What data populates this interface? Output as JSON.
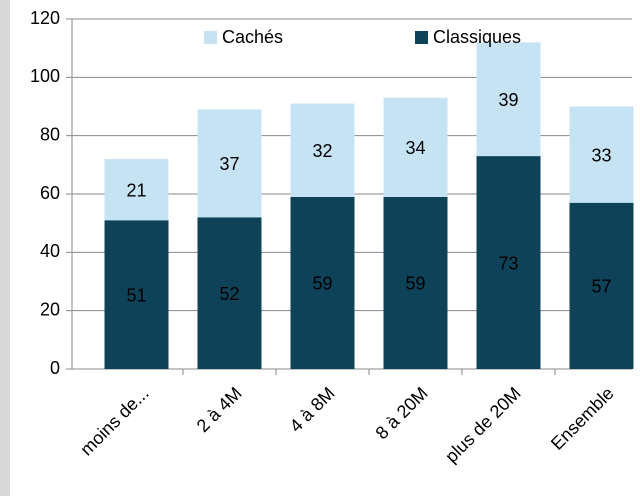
{
  "chart_data": {
    "type": "stacked_bar",
    "categories": [
      "moins de...",
      "2 à 4M",
      "4 à 8M",
      "8 à 20M",
      "plus de 20M",
      "Ensemble"
    ],
    "series": [
      {
        "name": "Classiques",
        "color": "#0e4259",
        "values": [
          51,
          52,
          59,
          59,
          73,
          57
        ]
      },
      {
        "name": "Cachés",
        "color": "#c6e3f4",
        "values": [
          21,
          37,
          32,
          34,
          39,
          33
        ]
      }
    ],
    "ylim": [
      0,
      120
    ],
    "yticks": [
      0,
      20,
      40,
      60,
      80,
      100,
      120
    ],
    "grid": true,
    "legend": "top"
  }
}
